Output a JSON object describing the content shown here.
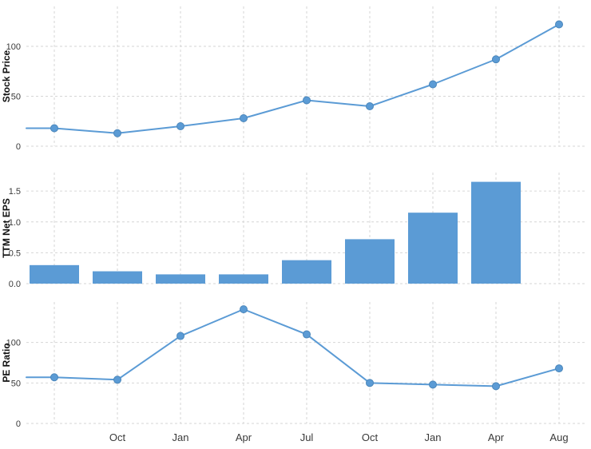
{
  "figure": {
    "background": "#ffffff",
    "accent_color": "#5b9bd5",
    "marker_edge_color": "#4a86ba",
    "grid_color": "#d6d6d6",
    "tick_text_color": "#3a3a3a",
    "axis_title_color": "#111111"
  },
  "x_axis": {
    "labels": [
      "",
      "Oct",
      "Jan",
      "Apr",
      "Jul",
      "Oct",
      "Jan",
      "Apr",
      "Aug"
    ]
  },
  "chart_data": [
    {
      "type": "line",
      "title": "",
      "ylabel": "Stock Price",
      "xlabel": "",
      "categories": [
        "",
        "Oct",
        "Jan",
        "Apr",
        "Jul",
        "Oct",
        "Jan",
        "Apr",
        "Aug"
      ],
      "values": [
        18,
        13,
        20,
        28,
        46,
        40,
        62,
        87,
        122
      ],
      "yticks": [
        0,
        50,
        100
      ],
      "ytick_labels": [
        "0",
        "50",
        "100"
      ],
      "ylim": [
        0,
        140
      ],
      "grid": true,
      "marker": "circle",
      "line_extends_to_left_edge": true,
      "legend": "none"
    },
    {
      "type": "bar",
      "title": "",
      "ylabel": "TTM Net EPS",
      "xlabel": "",
      "categories": [
        "",
        "Oct",
        "Jan",
        "Apr",
        "Jul",
        "Oct",
        "Jan",
        "Apr"
      ],
      "values": [
        0.3,
        0.2,
        0.15,
        0.15,
        0.38,
        0.72,
        1.15,
        1.65
      ],
      "yticks": [
        0.0,
        0.5,
        1.0,
        1.5
      ],
      "ytick_labels": [
        "0.0",
        "0.5",
        "1.0",
        "1.5"
      ],
      "ylim": [
        0,
        1.8
      ],
      "grid": true,
      "legend": "none"
    },
    {
      "type": "line",
      "title": "",
      "ylabel": "PE Ratio",
      "xlabel": "",
      "categories": [
        "",
        "Oct",
        "Jan",
        "Apr",
        "Jul",
        "Oct",
        "Jan",
        "Apr",
        "Aug"
      ],
      "values": [
        57,
        54,
        108,
        141,
        110,
        50,
        48,
        46,
        68
      ],
      "yticks": [
        0,
        50,
        100
      ],
      "ytick_labels": [
        "0",
        "50",
        "100"
      ],
      "ylim": [
        0,
        150
      ],
      "grid": true,
      "marker": "circle",
      "line_extends_to_left_edge": true,
      "legend": "none"
    }
  ]
}
